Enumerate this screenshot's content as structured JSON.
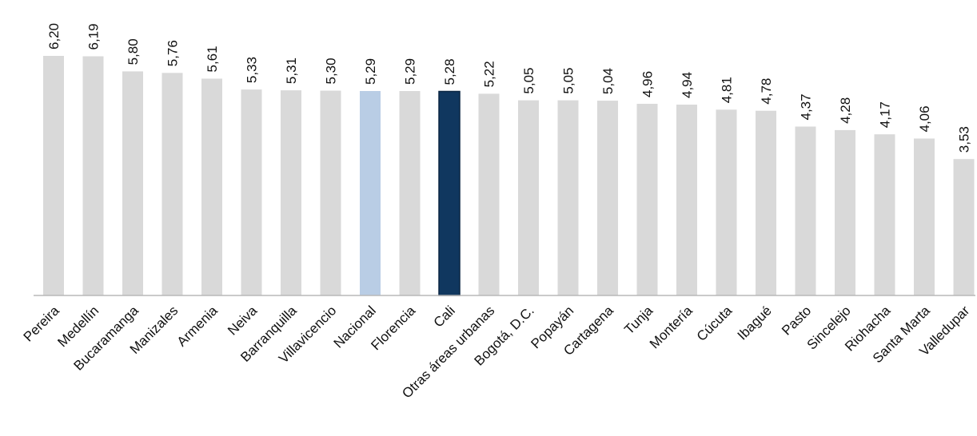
{
  "chart_data": {
    "type": "bar",
    "title": "",
    "xlabel": "",
    "ylabel": "",
    "ylim": [
      0,
      6.2
    ],
    "grid": false,
    "legend": "none",
    "categories": [
      "Pereira",
      "Medellín",
      "Bucaramanga",
      "Manizales",
      "Armenia",
      "Neiva",
      "Barranquilla",
      "Villavicencio",
      "Nacional",
      "Florencia",
      "Cali",
      "Otras áreas urbanas",
      "Bogotá, D.C.",
      "Popayán",
      "Cartagena",
      "Tunja",
      "Montería",
      "Cúcuta",
      "Ibagué",
      "Pasto",
      "Sincelejo",
      "Riohacha",
      "Santa Marta",
      "Valledupar"
    ],
    "values": [
      6.2,
      6.19,
      5.8,
      5.76,
      5.61,
      5.33,
      5.31,
      5.3,
      5.29,
      5.29,
      5.28,
      5.22,
      5.05,
      5.05,
      5.04,
      4.96,
      4.94,
      4.81,
      4.78,
      4.37,
      4.28,
      4.17,
      4.06,
      3.53
    ],
    "value_labels": [
      "6,20",
      "6,19",
      "5,80",
      "5,76",
      "5,61",
      "5,33",
      "5,31",
      "5,30",
      "5,29",
      "5,29",
      "5,28",
      "5,22",
      "5,05",
      "5,05",
      "5,04",
      "4,96",
      "4,94",
      "4,81",
      "4,78",
      "4,37",
      "4,28",
      "4,17",
      "4,06",
      "3,53"
    ],
    "colors": {
      "default": "#d9d9d9",
      "highlight_national": "#b9cde5",
      "highlight_city": "#10375f",
      "highlight_city_border": "#0b2744",
      "axis": "#b8b8b8",
      "text": "#111111"
    },
    "highlights": {
      "Nacional": "highlight_national",
      "Cali": "highlight_city"
    }
  }
}
